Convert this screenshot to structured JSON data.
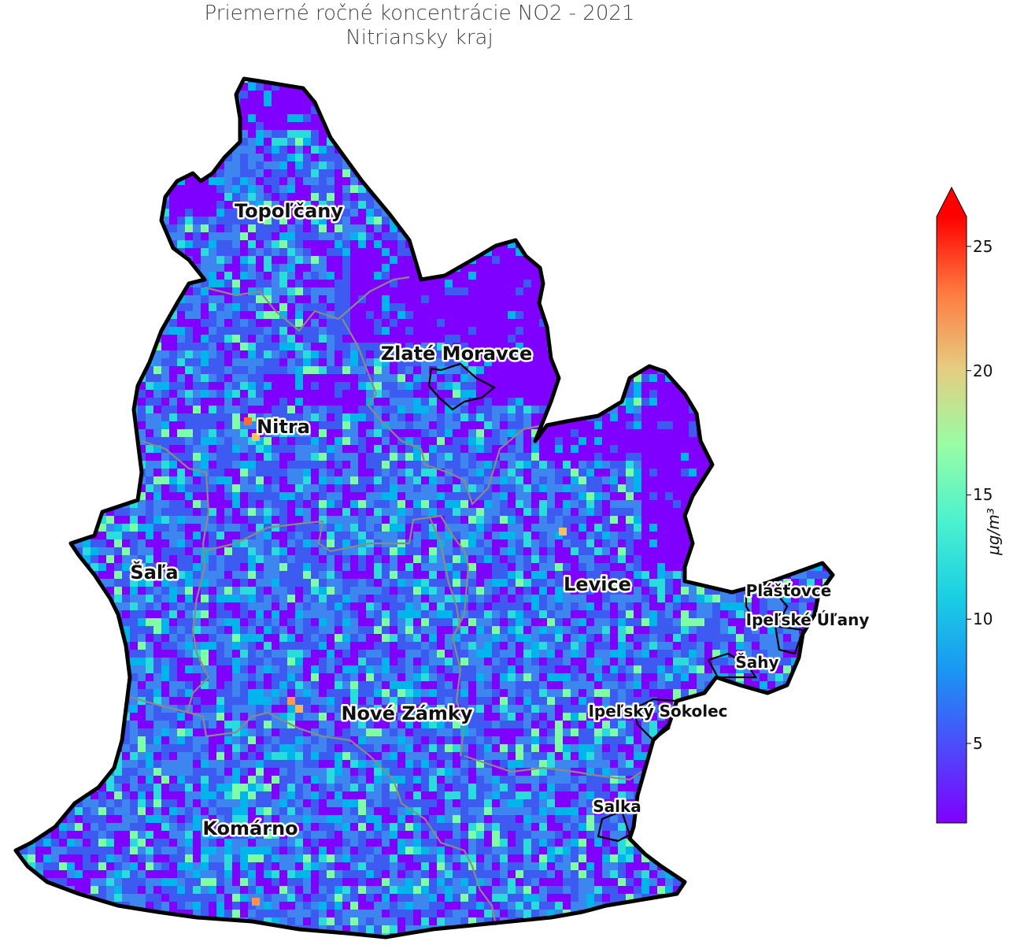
{
  "title": {
    "line1": "Priemerné ročné koncentrácie NO2 - 2021",
    "line2": "Nitriansky kraj"
  },
  "colorbar": {
    "unit_label": "μg/m³",
    "ticks": [
      {
        "value": 5,
        "label": "5"
      },
      {
        "value": 10,
        "label": "10"
      },
      {
        "value": 15,
        "label": "15"
      },
      {
        "value": 20,
        "label": "20"
      },
      {
        "value": 25,
        "label": "25"
      }
    ],
    "min": 1.8,
    "max": 26.2,
    "extend": "max",
    "colormap": "rainbow",
    "colors": [
      "#8000ff",
      "#3d5af1",
      "#00b5eb",
      "#2adddd",
      "#7ffea8",
      "#d4dd80",
      "#ffb360",
      "#ff5a30",
      "#ff0000"
    ]
  },
  "labels": [
    {
      "name": "Topoľčany",
      "size": "large"
    },
    {
      "name": "Zlaté Moravce",
      "size": "large"
    },
    {
      "name": "Nitra",
      "size": "large"
    },
    {
      "name": "Šaľa",
      "size": "large"
    },
    {
      "name": "Levice",
      "size": "large"
    },
    {
      "name": "Nové Zámky",
      "size": "large"
    },
    {
      "name": "Komárno",
      "size": "large"
    },
    {
      "name": "Plášťovce",
      "size": "small"
    },
    {
      "name": "Ipeľské Úľany",
      "size": "small"
    },
    {
      "name": "Šahy",
      "size": "small"
    },
    {
      "name": "Ipeľský Sokolec",
      "size": "small"
    },
    {
      "name": "Salka",
      "size": "small"
    }
  ],
  "map_colors": {
    "background_low": "#7a13ff",
    "mid_blue": "#3d7ef0",
    "district_border": "#8a8a8a",
    "region_border": "#000000"
  }
}
